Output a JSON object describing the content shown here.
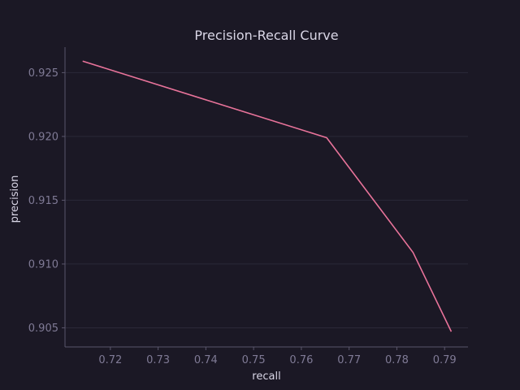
{
  "chart_data": {
    "type": "line",
    "title": "Precision-Recall Curve",
    "xlabel": "recall",
    "ylabel": "precision",
    "xlim": [
      0.7105,
      0.7949
    ],
    "ylim": [
      0.9035,
      0.927
    ],
    "xticks": [
      {
        "value": 0.72,
        "label": "0.72"
      },
      {
        "value": 0.73,
        "label": "0.73"
      },
      {
        "value": 0.74,
        "label": "0.74"
      },
      {
        "value": 0.75,
        "label": "0.75"
      },
      {
        "value": 0.76,
        "label": "0.76"
      },
      {
        "value": 0.77,
        "label": "0.77"
      },
      {
        "value": 0.78,
        "label": "0.78"
      },
      {
        "value": 0.79,
        "label": "0.79"
      }
    ],
    "yticks": [
      {
        "value": 0.905,
        "label": "0.905"
      },
      {
        "value": 0.91,
        "label": "0.910"
      },
      {
        "value": 0.915,
        "label": "0.915"
      },
      {
        "value": 0.92,
        "label": "0.920"
      },
      {
        "value": 0.925,
        "label": "0.925"
      }
    ],
    "grid": "horizontal",
    "legend": "none",
    "series": [
      {
        "color": "#e8739a",
        "x": [
          0.7142,
          0.7653,
          0.7834,
          0.7914
        ],
        "y": [
          0.9259,
          0.9199,
          0.9109,
          0.9047
        ]
      }
    ],
    "colors": {
      "background": "#1b1825",
      "text": "#d9d6e6",
      "tick_text": "#7f7a95",
      "grid": "#2b2838",
      "spine": "#5a566b"
    }
  }
}
